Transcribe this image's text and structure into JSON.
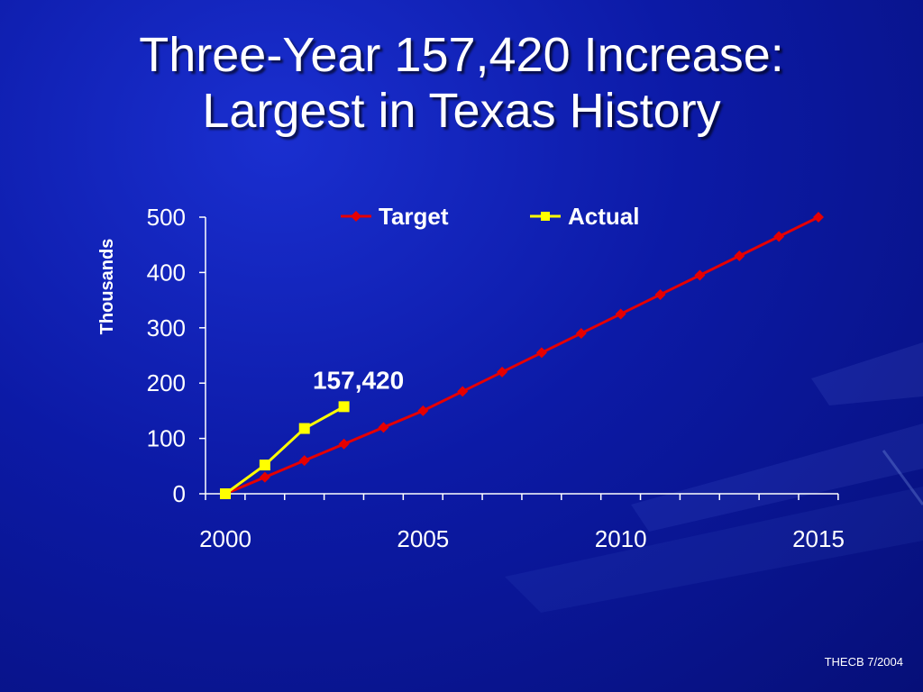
{
  "slide": {
    "title_line1": "Three-Year 157,420 Increase:",
    "title_line2": "Largest in Texas History",
    "footer": "THECB 7/2004"
  },
  "colors": {
    "background": "#0c1aa6",
    "target": "#e60000",
    "actual": "#ffff00",
    "text": "#ffffff"
  },
  "chart_data": {
    "type": "line",
    "ylabel": "Thousands",
    "xlabel": "",
    "xlim": [
      2000,
      2015
    ],
    "ylim": [
      0,
      500
    ],
    "x_tick_labels": [
      "2000",
      "2005",
      "2010",
      "2015"
    ],
    "y_tick_labels": [
      "0",
      "100",
      "200",
      "300",
      "400",
      "500"
    ],
    "legend_placement": "top",
    "grid": false,
    "series": [
      {
        "name": "Target",
        "color": "#e60000",
        "marker": "diamond",
        "x": [
          2000,
          2001,
          2002,
          2003,
          2004,
          2005,
          2006,
          2007,
          2008,
          2009,
          2010,
          2011,
          2012,
          2013,
          2014,
          2015
        ],
        "values": [
          0,
          30,
          60,
          90,
          120,
          150,
          185,
          220,
          255,
          290,
          325,
          360,
          395,
          430,
          465,
          500
        ]
      },
      {
        "name": "Actual",
        "color": "#ffff00",
        "marker": "square",
        "x": [
          2000,
          2001,
          2002,
          2003
        ],
        "values": [
          0,
          52,
          118,
          157.42
        ]
      }
    ],
    "annotations": [
      {
        "text": "157,420",
        "x": 2003,
        "y": 157.42
      }
    ]
  }
}
